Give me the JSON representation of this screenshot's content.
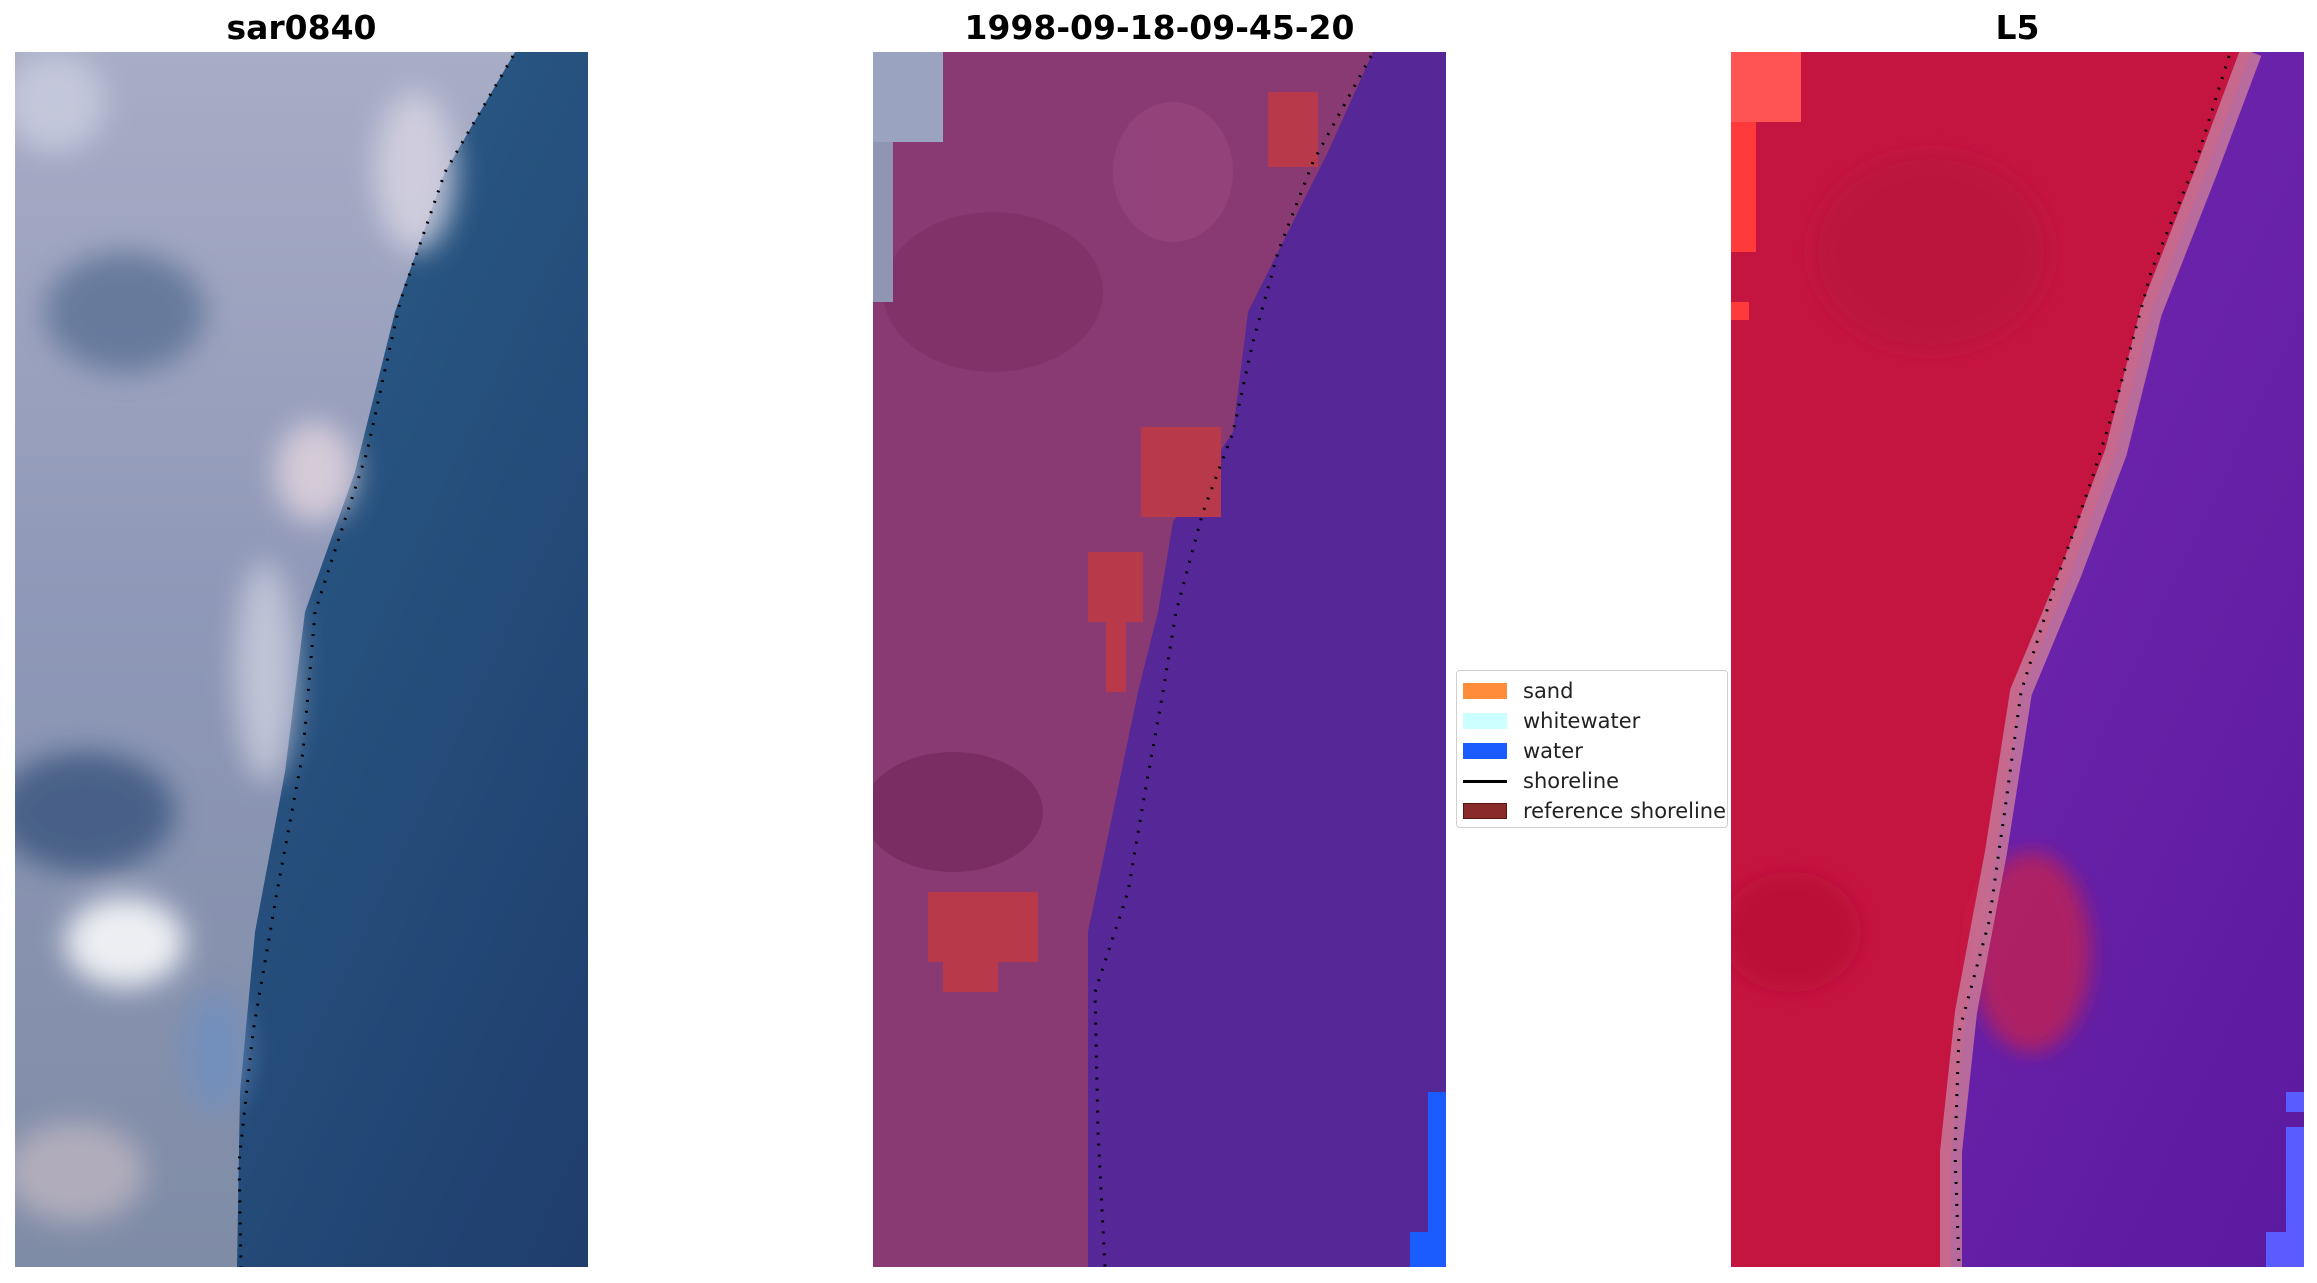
{
  "panels": [
    {
      "title": "sar0840"
    },
    {
      "title": "1998-09-18-09-45-20"
    },
    {
      "title": "L5"
    }
  ],
  "legend": {
    "items": [
      {
        "label": "sand",
        "color": "#ff8c3a",
        "kind": "patch"
      },
      {
        "label": "whitewater",
        "color": "#ccffff",
        "kind": "patch"
      },
      {
        "label": "water",
        "color": "#1a5cff",
        "kind": "patch"
      },
      {
        "label": "shoreline",
        "color": "#000000",
        "kind": "line"
      },
      {
        "label": "reference shoreline",
        "color": "#8b2a2a",
        "kind": "patch"
      }
    ]
  },
  "colors": {
    "rgb_land": "#8f97b3",
    "rgb_water": "#24507e",
    "class_land": "#8a3a72",
    "class_water": "#562796",
    "class_sand_blob": "#b83a4a",
    "mndwi_land": "#c41540",
    "mndwi_water": "#6a1fa8"
  }
}
